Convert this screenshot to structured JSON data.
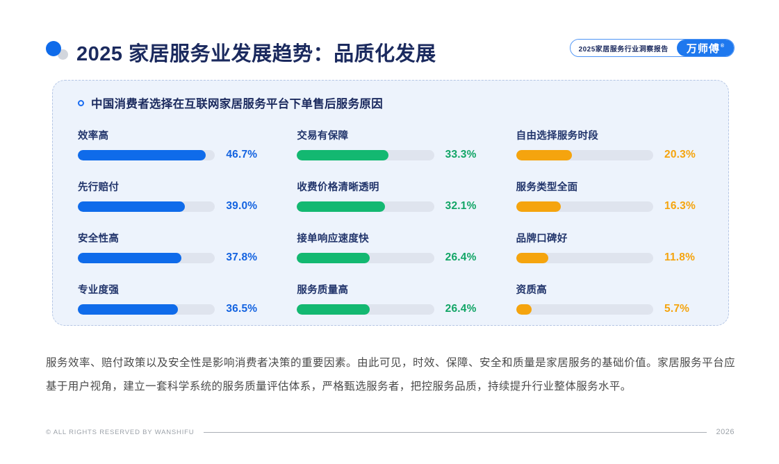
{
  "page": {
    "title": "2025 家居服务业发展趋势：品质化发展",
    "badge": {
      "report_label": "2025家居服务行业洞察报告",
      "brand": "万师傅",
      "registered_mark": "®"
    },
    "summary": "服务效率、赔付政策以及安全性是影响消费者决策的重要因素。由此可见，时效、保障、安全和质量是家居服务的基础价值。家居服务平台应基于用户视角，建立一套科学系统的服务质量评估体系，严格甄选服务者，把控服务品质，持续提升行业整体服务水平。",
    "footer": {
      "copyright": "© ALL RIGHTS RESERVED BY WANSHIFU",
      "page_number": "2026"
    }
  },
  "colors": {
    "title_navy": "#1b2a5e",
    "label_navy": "#22356b",
    "panel_background": "#edf3fc",
    "panel_border": "#b4c5e4",
    "bar_track": "#dfe4ee",
    "brand_blue": "#1e78ee",
    "bar_blue": "#0f6bea",
    "bar_green": "#13b871",
    "bar_orange": "#f5a40e"
  },
  "chart_data": {
    "type": "bar",
    "orientation": "horizontal",
    "title": "中国消费者选择在互联网家居服务平台下单售后服务原因",
    "value_unit": "%",
    "scale_max": 50,
    "grid": false,
    "legend": "none",
    "groups": [
      {
        "name": "column-1-blue",
        "bar_color": "#0f6bea",
        "value_color": "#1463e0",
        "items": [
          {
            "label": "效率高",
            "value": 46.7
          },
          {
            "label": "先行赔付",
            "value": 39.0
          },
          {
            "label": "安全性高",
            "value": 37.8
          },
          {
            "label": "专业度强",
            "value": 36.5
          }
        ]
      },
      {
        "name": "column-2-green",
        "bar_color": "#13b871",
        "value_color": "#12a566",
        "items": [
          {
            "label": "交易有保障",
            "value": 33.3
          },
          {
            "label": "收费价格清晰透明",
            "value": 32.1
          },
          {
            "label": "接单响应速度快",
            "value": 26.4
          },
          {
            "label": "服务质量高",
            "value": 26.4
          }
        ]
      },
      {
        "name": "column-3-orange",
        "bar_color": "#f5a40e",
        "value_color": "#f5a40e",
        "items": [
          {
            "label": "自由选择服务时段",
            "value": 20.3
          },
          {
            "label": "服务类型全面",
            "value": 16.3
          },
          {
            "label": "品牌口碑好",
            "value": 11.8
          },
          {
            "label": "资质高",
            "value": 5.7
          }
        ]
      }
    ]
  }
}
